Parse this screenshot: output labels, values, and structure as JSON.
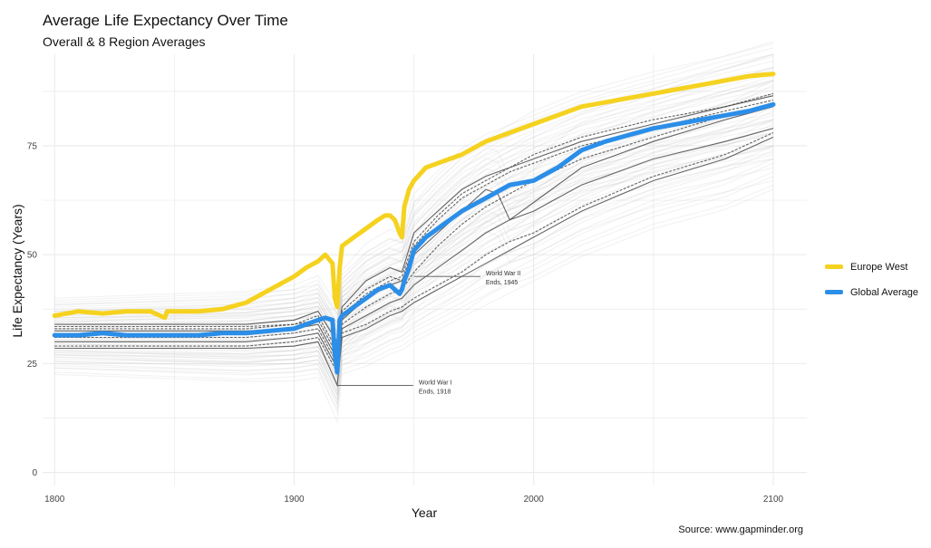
{
  "title": "Average Life Expectancy Over Time",
  "subtitle": "Overall & 8 Region Averages",
  "caption": "Source: www.gapminder.org",
  "colors": {
    "europe_west": "#f5d21f",
    "global_average": "#2b8ee8",
    "regions": "#4a4a4a",
    "countries": "#c8c8c8",
    "grid": "#ebebeb"
  },
  "chart_data": {
    "type": "line",
    "xlabel": "Year",
    "ylabel": "Life Expectancy (Years)",
    "xlim": [
      1795,
      2114
    ],
    "ylim": [
      -3,
      96
    ],
    "x_ticks": [
      1800,
      1900,
      2000,
      2100
    ],
    "y_ticks": [
      0,
      25,
      50,
      75
    ],
    "grid": true,
    "legend_position": "right",
    "legend": [
      "Europe West",
      "Global Average"
    ],
    "series": [
      {
        "name": "Europe West",
        "role": "highlight",
        "x": [
          1800,
          1810,
          1820,
          1830,
          1840,
          1846,
          1847,
          1850,
          1860,
          1870,
          1880,
          1890,
          1900,
          1905,
          1910,
          1913,
          1916,
          1917,
          1918,
          1919,
          1920,
          1925,
          1930,
          1935,
          1938,
          1940,
          1942,
          1944,
          1945,
          1946,
          1948,
          1950,
          1955,
          1960,
          1970,
          1980,
          1990,
          2000,
          2010,
          2020,
          2030,
          2040,
          2050,
          2060,
          2070,
          2080,
          2090,
          2100
        ],
        "y": [
          36,
          37,
          36.5,
          37,
          37,
          35.5,
          37,
          37,
          37,
          37.5,
          39,
          42,
          45,
          47,
          48.5,
          50,
          48,
          40,
          38,
          47,
          52,
          54,
          56,
          58,
          59,
          59,
          58,
          55,
          54,
          61,
          65,
          67,
          70,
          71,
          73,
          76,
          78,
          80,
          82,
          84,
          85,
          86,
          87,
          88,
          89,
          90,
          91,
          91.5
        ]
      },
      {
        "name": "Global Average",
        "role": "highlight",
        "x": [
          1800,
          1810,
          1820,
          1830,
          1840,
          1850,
          1860,
          1870,
          1880,
          1890,
          1900,
          1905,
          1910,
          1913,
          1916,
          1917,
          1918,
          1919,
          1920,
          1925,
          1930,
          1935,
          1940,
          1942,
          1944,
          1945,
          1946,
          1948,
          1950,
          1955,
          1960,
          1970,
          1980,
          1990,
          2000,
          2010,
          2020,
          2030,
          2040,
          2050,
          2060,
          2070,
          2080,
          2090,
          2100
        ],
        "y": [
          31.5,
          31.5,
          32,
          31.5,
          31.5,
          31.5,
          31.5,
          32,
          32,
          32.5,
          33,
          34,
          35,
          35.5,
          35,
          27,
          23,
          35,
          36,
          38,
          40,
          42,
          43,
          42,
          41,
          42,
          44,
          47,
          51,
          54,
          56,
          60,
          63,
          66,
          67,
          70,
          74,
          76,
          77.5,
          79,
          80,
          81,
          82,
          83,
          84.5
        ]
      },
      {
        "name": "",
        "role": "region",
        "x": [
          1800,
          1850,
          1880,
          1900,
          1910,
          1918,
          1920,
          1930,
          1940,
          1945,
          1950,
          1960,
          1970,
          1980,
          1990,
          2000,
          2020,
          2050,
          2080,
          2100
        ],
        "y": [
          34,
          34,
          34,
          35,
          37,
          30,
          38,
          44,
          47,
          46,
          55,
          60,
          65,
          68,
          70,
          72,
          76,
          80,
          84,
          86.5
        ]
      },
      {
        "name": "",
        "role": "region",
        "x": [
          1800,
          1850,
          1880,
          1900,
          1910,
          1918,
          1920,
          1930,
          1940,
          1945,
          1950,
          1960,
          1970,
          1980,
          1990,
          2000,
          2020,
          2050,
          2080,
          2100
        ],
        "y": [
          33,
          33,
          33,
          34,
          36,
          28,
          37,
          42,
          45,
          44,
          52,
          58,
          63,
          66,
          69,
          71,
          75,
          79,
          83,
          85.5
        ]
      },
      {
        "name": "",
        "role": "region",
        "x": [
          1800,
          1850,
          1880,
          1900,
          1910,
          1918,
          1920,
          1930,
          1940,
          1945,
          1950,
          1960,
          1970,
          1980,
          1985,
          1990,
          2000,
          2020,
          2050,
          2080,
          2100
        ],
        "y": [
          32.5,
          32.5,
          32.5,
          33,
          34,
          26,
          35,
          40,
          43,
          44,
          50,
          55,
          60,
          65,
          64,
          58,
          62,
          70,
          76,
          81,
          84
        ]
      },
      {
        "name": "",
        "role": "region",
        "x": [
          1800,
          1850,
          1880,
          1900,
          1910,
          1918,
          1920,
          1930,
          1940,
          1945,
          1950,
          1960,
          1970,
          1980,
          1990,
          2000,
          2020,
          2050,
          2080,
          2100
        ],
        "y": [
          31,
          31,
          31,
          32,
          33,
          25,
          34,
          38,
          41,
          42,
          46,
          52,
          57,
          61,
          64,
          67,
          72,
          77,
          82,
          84
        ]
      },
      {
        "name": "",
        "role": "region",
        "x": [
          1800,
          1850,
          1880,
          1900,
          1910,
          1918,
          1920,
          1930,
          1940,
          1945,
          1950,
          1960,
          1970,
          1980,
          1990,
          2000,
          2020,
          2050,
          2080,
          2100
        ],
        "y": [
          30,
          30,
          30,
          31,
          32,
          24,
          33,
          36,
          39,
          40,
          43,
          47,
          51,
          55,
          58,
          60,
          66,
          72,
          76,
          79
        ]
      },
      {
        "name": "",
        "role": "region",
        "x": [
          1800,
          1850,
          1880,
          1900,
          1910,
          1918,
          1920,
          1930,
          1940,
          1945,
          1950,
          1960,
          1970,
          1980,
          1990,
          2000,
          2020,
          2050,
          2080,
          2100
        ],
        "y": [
          29,
          29,
          29,
          30,
          31,
          23,
          32,
          34,
          37,
          38,
          40,
          43,
          46,
          50,
          53,
          55,
          61,
          68,
          73,
          78
        ]
      },
      {
        "name": "",
        "role": "region",
        "x": [
          1800,
          1850,
          1880,
          1900,
          1910,
          1918,
          1920,
          1930,
          1940,
          1945,
          1950,
          1960,
          1970,
          1980,
          1990,
          2000,
          2020,
          2050,
          2080,
          2100
        ],
        "y": [
          28.5,
          28.5,
          28.5,
          29,
          30,
          20,
          31,
          33,
          36,
          37,
          39,
          42,
          45,
          48,
          51,
          54,
          60,
          67,
          72,
          77
        ]
      },
      {
        "name": "",
        "role": "region",
        "x": [
          1800,
          1850,
          1880,
          1900,
          1910,
          1918,
          1920,
          1930,
          1940,
          1945,
          1950,
          1960,
          1970,
          1980,
          1990,
          2000,
          2020,
          2050,
          2080,
          2100
        ],
        "y": [
          33.5,
          33.5,
          33.5,
          34,
          35,
          27,
          36,
          41,
          44,
          45,
          53,
          59,
          64,
          67,
          70,
          73,
          77,
          81,
          84,
          87
        ]
      }
    ],
    "annotations": [
      {
        "text_line1": "World War I",
        "text_line2": "Ends, 1918",
        "x": 1918,
        "y": 20,
        "label_x": 1952
      },
      {
        "text_line1": "World War II",
        "text_line2": "Ends, 1945",
        "x": 1950,
        "y": 45,
        "label_x": 1980
      }
    ]
  }
}
